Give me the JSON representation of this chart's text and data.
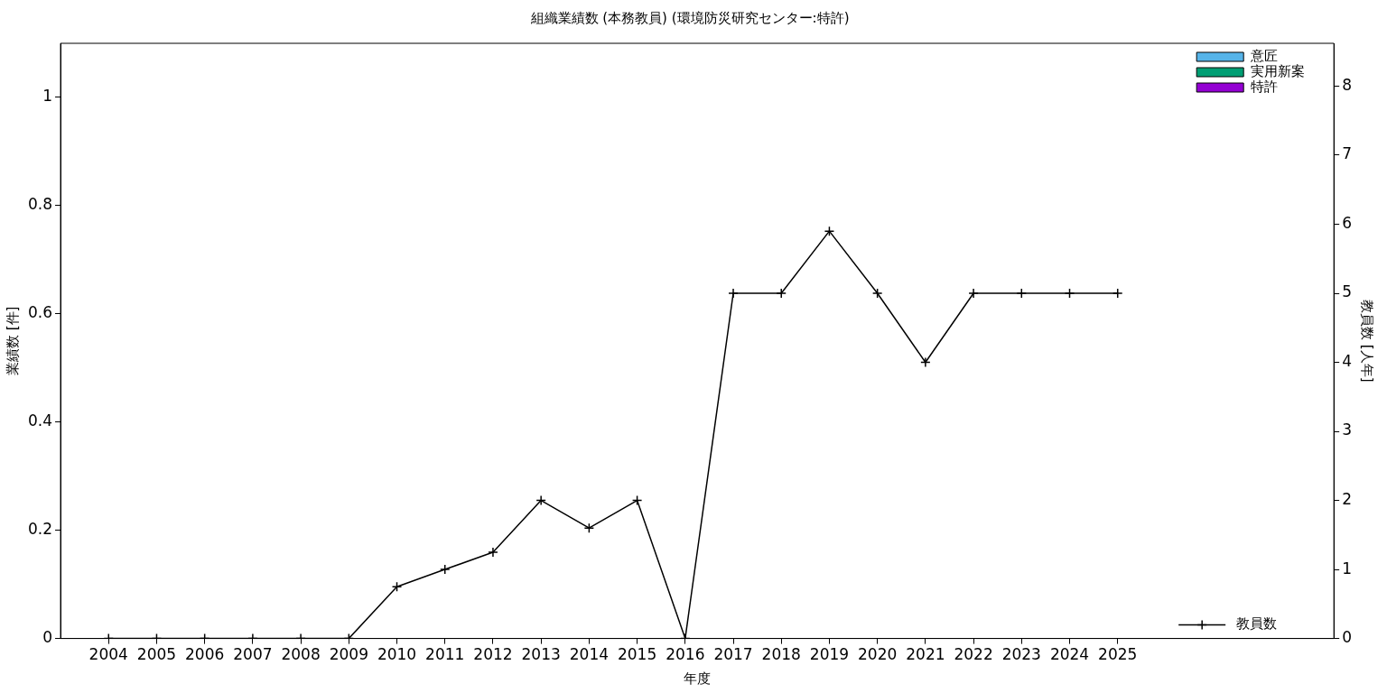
{
  "chart_data": {
    "type": "bar",
    "title": "組織業績数 (本務教員) (環境防災研究センター:特許)",
    "xlabel": "年度",
    "ylabel": "業績数 [件]",
    "y2label": "教員数 [人年]",
    "x": [
      2004,
      2005,
      2006,
      2007,
      2008,
      2009,
      2010,
      2011,
      2012,
      2013,
      2014,
      2015,
      2016,
      2017,
      2018,
      2019,
      2020,
      2021,
      2022,
      2023,
      2024,
      2025
    ],
    "legend": "top right",
    "grid": false,
    "marker": "cross",
    "line_style": "solid",
    "series": [
      {
        "name": "意匠",
        "color": "#56b4e9",
        "values": [
          0,
          0,
          0,
          0,
          0,
          0,
          0,
          0,
          0,
          0,
          0,
          0,
          0,
          0,
          0,
          0,
          0,
          0,
          0,
          0,
          0,
          0
        ]
      },
      {
        "name": "実用新案",
        "color": "#009e73",
        "values": [
          0,
          0,
          0,
          0,
          0,
          0,
          0,
          0,
          0,
          0,
          0,
          0,
          0,
          0,
          0,
          0,
          0,
          0,
          0,
          0,
          0,
          0
        ]
      },
      {
        "name": "特許",
        "color": "#9400d3",
        "values": [
          0,
          0,
          0,
          0,
          0,
          0,
          0,
          0,
          0,
          0,
          0,
          0,
          0,
          0,
          0,
          0,
          0,
          0,
          0,
          0,
          0,
          0
        ]
      },
      {
        "name": "教員数",
        "type": "line",
        "axis": "y2",
        "color": "#000000",
        "values": [
          0,
          0,
          0,
          0,
          0,
          0,
          0.75,
          1,
          1.25,
          2,
          1.6,
          2,
          0,
          5,
          5,
          5.9,
          5,
          4,
          5,
          5,
          5,
          5
        ]
      }
    ],
    "xlim": [
      2003,
      2029.5
    ],
    "xticks": [
      2004,
      2005,
      2006,
      2007,
      2008,
      2009,
      2010,
      2011,
      2012,
      2013,
      2014,
      2015,
      2016,
      2017,
      2018,
      2019,
      2020,
      2021,
      2022,
      2023,
      2024,
      2025
    ],
    "ylim": [
      0,
      1.1
    ],
    "yticks": [
      0,
      0.2,
      0.4,
      0.6,
      0.8,
      1
    ],
    "y2lim": [
      0,
      8.62
    ],
    "y2ticks": [
      0,
      1,
      2,
      3,
      4,
      5,
      6,
      7,
      8
    ]
  }
}
